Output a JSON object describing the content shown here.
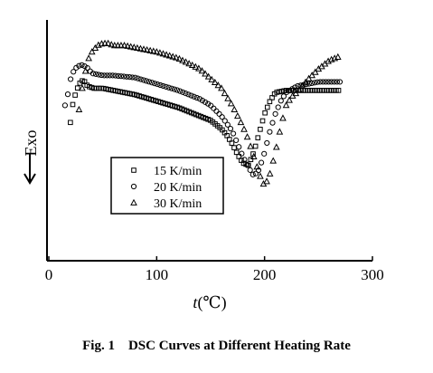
{
  "caption": "Fig. 1    DSC Curves at Different Heating Rate",
  "chart_data": {
    "type": "scatter",
    "title": "",
    "xlabel_italic": "t",
    "xlabel_unit": "(℃)",
    "ylabel": "Exo",
    "xlim": [
      0,
      300
    ],
    "ylim": [
      0,
      100
    ],
    "xticks": [
      "0",
      "100",
      "200",
      "300"
    ],
    "legend_position": "center",
    "series": [
      {
        "name": "15 K/min",
        "marker": "square",
        "x": [
          20,
          22,
          25,
          28,
          32,
          36,
          42,
          50,
          60,
          80,
          100,
          120,
          140,
          150,
          160,
          165,
          170,
          175,
          180,
          185,
          190,
          195,
          200,
          205,
          210,
          220,
          240,
          260,
          270
        ],
        "y": [
          52,
          60,
          66,
          70,
          72,
          69,
          68,
          68,
          67,
          65,
          62,
          59,
          55,
          53,
          49,
          46,
          42,
          37,
          33,
          32,
          38,
          47,
          56,
          62,
          66,
          67,
          67,
          67,
          67
        ]
      },
      {
        "name": "20 K/min",
        "marker": "circle",
        "x": [
          15,
          18,
          20,
          23,
          26,
          30,
          35,
          40,
          50,
          60,
          80,
          100,
          120,
          140,
          150,
          160,
          170,
          175,
          180,
          185,
          190,
          195,
          200,
          205,
          210,
          215,
          220,
          230,
          240,
          250,
          260,
          270
        ],
        "y": [
          60,
          66,
          72,
          76,
          78,
          79,
          78,
          75,
          74,
          74,
          73,
          70,
          67,
          63,
          60,
          55,
          48,
          42,
          36,
          31,
          27,
          30,
          38,
          48,
          56,
          62,
          66,
          69,
          70,
          71,
          71,
          71
        ]
      },
      {
        "name": "30 K/min",
        "marker": "triangle",
        "x": [
          28,
          31,
          34,
          37,
          40,
          45,
          50,
          55,
          60,
          70,
          80,
          100,
          120,
          140,
          160,
          170,
          180,
          185,
          190,
          195,
          200,
          205,
          210,
          215,
          220,
          225,
          230,
          240,
          250,
          260,
          270
        ],
        "y": [
          58,
          68,
          76,
          82,
          85,
          88,
          89,
          89,
          88,
          88,
          87,
          85,
          82,
          77,
          68,
          60,
          50,
          44,
          36,
          28,
          22,
          28,
          38,
          50,
          60,
          64,
          66,
          72,
          77,
          81,
          83
        ]
      }
    ]
  }
}
